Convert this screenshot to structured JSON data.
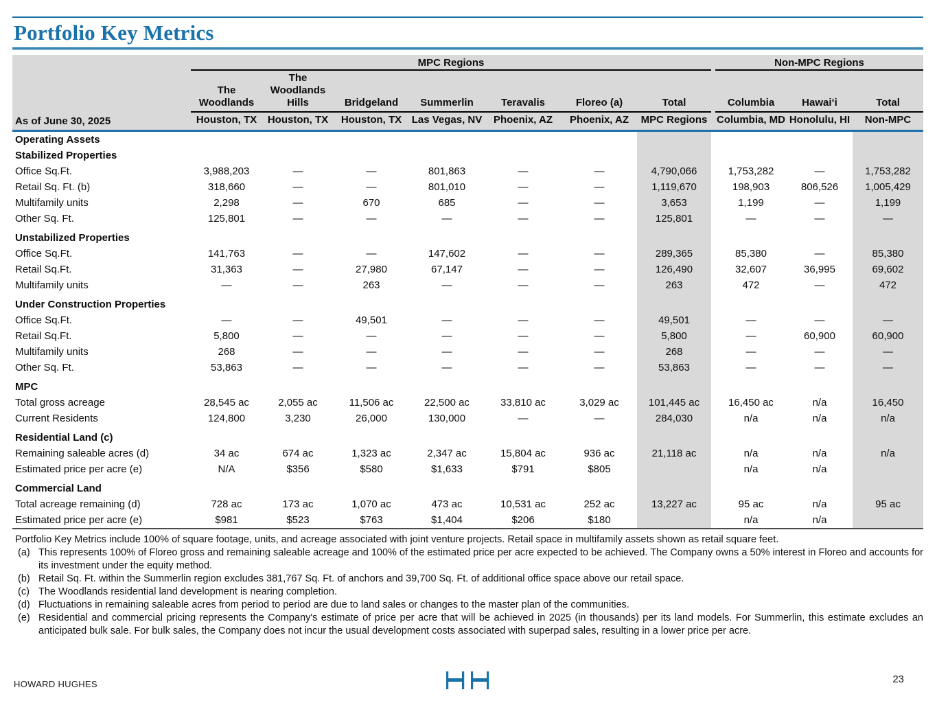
{
  "title": "Portfolio Key Metrics",
  "colors": {
    "accent_blue": "#1a72ab",
    "header_gray": "#d9d9d9",
    "table_bottom_line": "#4a4a4a"
  },
  "table": {
    "as_of": "As of June 30, 2025",
    "group_headers": [
      "MPC Regions",
      "Non-MPC Regions"
    ],
    "columns": [
      {
        "name": "The Woodlands",
        "location": "Houston, TX"
      },
      {
        "name": "The Woodlands Hills",
        "location": "Houston, TX"
      },
      {
        "name": "Bridgeland",
        "location": "Houston, TX"
      },
      {
        "name": "Summerlin",
        "location": "Las Vegas, NV"
      },
      {
        "name": "Teravalis",
        "location": "Phoenix, AZ"
      },
      {
        "name": "Floreo (a)",
        "location": "Phoenix, AZ"
      },
      {
        "name": "Total",
        "location": "MPC Regions"
      },
      {
        "name": "Columbia",
        "location": "Columbia, MD"
      },
      {
        "name": "Hawaiʻi",
        "location": "Honolulu, HI"
      },
      {
        "name": "Total",
        "location": "Non-MPC"
      }
    ],
    "rows": [
      {
        "type": "section",
        "label": "Operating Assets",
        "spaced": false
      },
      {
        "type": "section",
        "label": "Stabilized Properties",
        "spaced": false
      },
      {
        "type": "data",
        "label": "Office Sq.Ft.",
        "values": [
          "3,988,203",
          "—",
          "—",
          "801,863",
          "—",
          "—",
          "4,790,066",
          "1,753,282",
          "—",
          "1,753,282"
        ]
      },
      {
        "type": "data",
        "label": "Retail Sq. Ft. (b)",
        "values": [
          "318,660",
          "—",
          "—",
          "801,010",
          "—",
          "—",
          "1,119,670",
          "198,903",
          "806,526",
          "1,005,429"
        ]
      },
      {
        "type": "data",
        "label": "Multifamily units",
        "values": [
          "2,298",
          "—",
          "670",
          "685",
          "—",
          "—",
          "3,653",
          "1,199",
          "—",
          "1,199"
        ]
      },
      {
        "type": "data",
        "label": "Other Sq. Ft.",
        "values": [
          "125,801",
          "—",
          "—",
          "—",
          "—",
          "—",
          "125,801",
          "—",
          "—",
          "—"
        ]
      },
      {
        "type": "section",
        "label": "Unstabilized Properties",
        "spaced": true
      },
      {
        "type": "data",
        "label": "Office Sq.Ft.",
        "values": [
          "141,763",
          "—",
          "—",
          "147,602",
          "—",
          "—",
          "289,365",
          "85,380",
          "—",
          "85,380"
        ]
      },
      {
        "type": "data",
        "label": "Retail Sq.Ft.",
        "values": [
          "31,363",
          "—",
          "27,980",
          "67,147",
          "—",
          "—",
          "126,490",
          "32,607",
          "36,995",
          "69,602"
        ]
      },
      {
        "type": "data",
        "label": "Multifamily units",
        "values": [
          "—",
          "—",
          "263",
          "—",
          "—",
          "—",
          "263",
          "472",
          "—",
          "472"
        ]
      },
      {
        "type": "section",
        "label": "Under Construction Properties",
        "spaced": true
      },
      {
        "type": "data",
        "label": "Office Sq.Ft.",
        "values": [
          "—",
          "—",
          "49,501",
          "—",
          "—",
          "—",
          "49,501",
          "—",
          "—",
          "—"
        ]
      },
      {
        "type": "data",
        "label": "Retail Sq.Ft.",
        "values": [
          "5,800",
          "—",
          "—",
          "—",
          "—",
          "—",
          "5,800",
          "—",
          "60,900",
          "60,900"
        ]
      },
      {
        "type": "data",
        "label": "Multifamily units",
        "values": [
          "268",
          "—",
          "—",
          "—",
          "—",
          "—",
          "268",
          "—",
          "—",
          "—"
        ]
      },
      {
        "type": "data",
        "label": "Other Sq. Ft.",
        "values": [
          "53,863",
          "—",
          "—",
          "—",
          "—",
          "—",
          "53,863",
          "—",
          "—",
          "—"
        ]
      },
      {
        "type": "section",
        "label": "MPC",
        "spaced": true
      },
      {
        "type": "data",
        "label": "Total gross acreage",
        "values": [
          "28,545 ac",
          "2,055 ac",
          "11,506 ac",
          "22,500 ac",
          "33,810 ac",
          "3,029 ac",
          "101,445 ac",
          "16,450 ac",
          "n/a",
          "16,450"
        ]
      },
      {
        "type": "data",
        "label": "Current Residents",
        "values": [
          "124,800",
          "3,230",
          "26,000",
          "130,000",
          "—",
          "—",
          "284,030",
          "n/a",
          "n/a",
          "n/a"
        ]
      },
      {
        "type": "section",
        "label": "Residential Land (c)",
        "spaced": true
      },
      {
        "type": "data",
        "label": "Remaining saleable acres (d)",
        "values": [
          "34 ac",
          "674 ac",
          "1,323 ac",
          "2,347 ac",
          "15,804 ac",
          "936 ac",
          "21,118 ac",
          "n/a",
          "n/a",
          "n/a"
        ]
      },
      {
        "type": "data",
        "label": "Estimated price per acre (e)",
        "values": [
          "N/A",
          "$356",
          "$580",
          "$1,633",
          "$791",
          "$805",
          "",
          "n/a",
          "n/a",
          ""
        ]
      },
      {
        "type": "section",
        "label": "Commercial Land",
        "spaced": true
      },
      {
        "type": "data",
        "label": "Total acreage remaining (d)",
        "values": [
          "728 ac",
          "173 ac",
          "1,070 ac",
          "473 ac",
          "10,531 ac",
          "252 ac",
          "13,227 ac",
          "95 ac",
          "n/a",
          "95 ac"
        ]
      },
      {
        "type": "data",
        "label": "Estimated price per acre (e)",
        "values": [
          "$981",
          "$523",
          "$763",
          "$1,404",
          "$206",
          "$180",
          "",
          "n/a",
          "n/a",
          ""
        ]
      }
    ]
  },
  "footnotes": [
    {
      "marker": "",
      "text": "Portfolio Key Metrics include 100% of square footage, units, and acreage associated with joint venture projects. Retail space in multifamily assets shown as retail square feet."
    },
    {
      "marker": "(a)",
      "text": "This represents 100% of Floreo gross and remaining saleable acreage and 100% of the estimated price per acre expected to be achieved. The Company owns a 50% interest in Floreo and accounts for its investment under the equity method."
    },
    {
      "marker": "(b)",
      "text": "Retail Sq. Ft. within the Summerlin region excludes 381,767 Sq. Ft. of anchors and 39,700 Sq. Ft. of additional office space above our retail space."
    },
    {
      "marker": "(c)",
      "text": "The Woodlands residential land development is nearing completion."
    },
    {
      "marker": "(d)",
      "text": "Fluctuations in remaining saleable acres from period to period are due to land sales or changes to the master plan of the communities."
    },
    {
      "marker": "(e)",
      "text": "Residential and commercial pricing represents the Company's estimate of price per acre that will be achieved in 2025 (in thousands) per its land models. For Summerlin, this estimate excludes an anticipated bulk sale. For bulk sales, the Company does not incur the usual development costs associated with superpad sales, resulting in a lower price per acre."
    }
  ],
  "footer": {
    "company": "HOWARD HUGHES",
    "page_number": "23",
    "logo": "hh-logo"
  }
}
